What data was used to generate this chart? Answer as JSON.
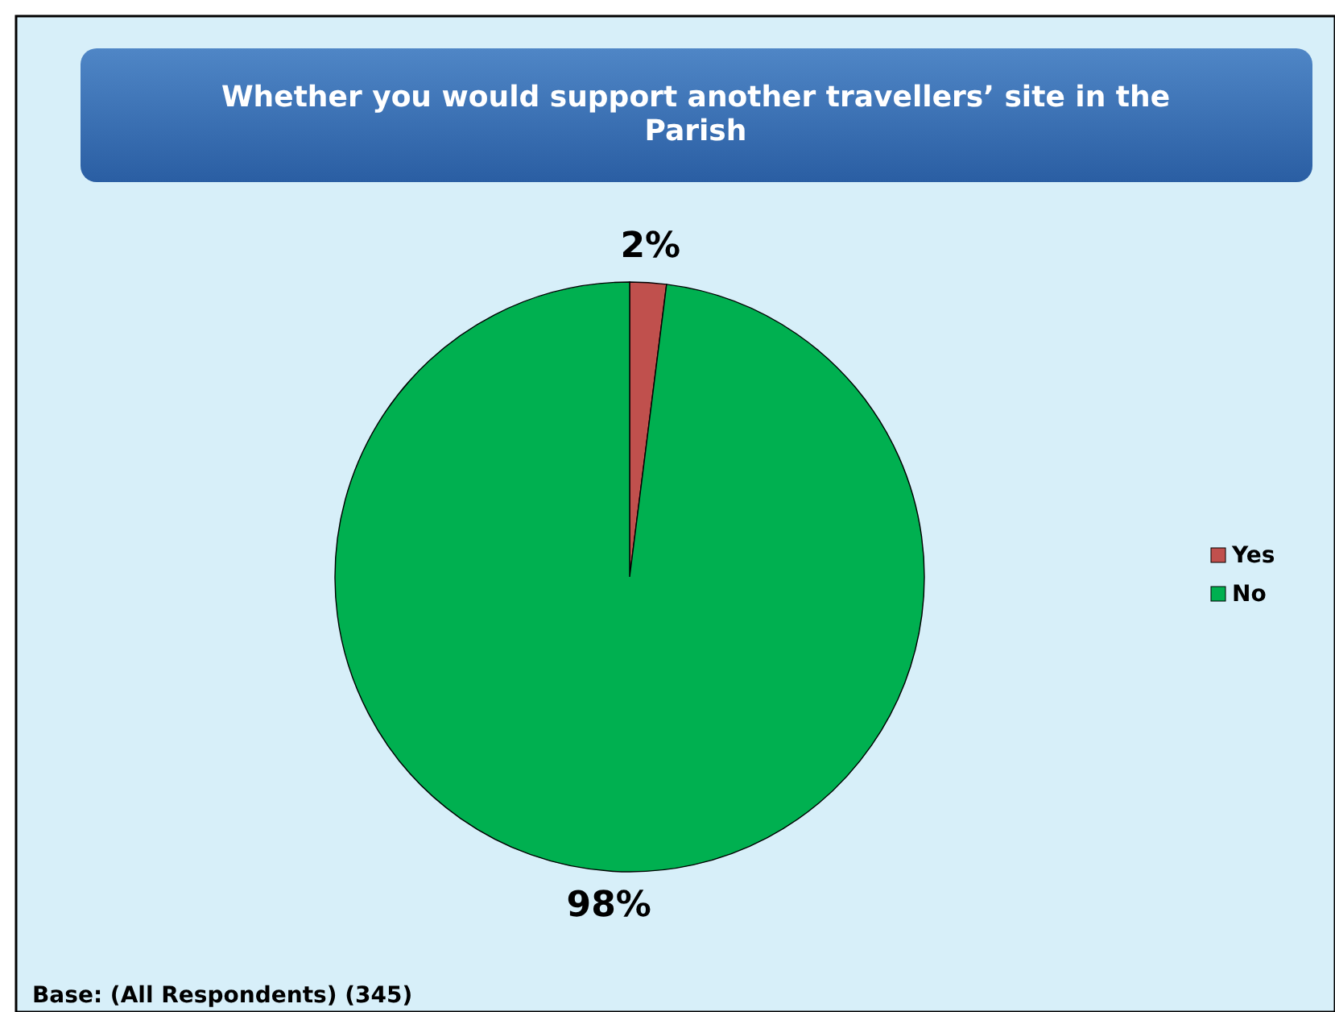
{
  "chart_data": {
    "type": "pie",
    "title": "Whether you would support another travellers’ site in the Parish",
    "categories": [
      "Yes",
      "No"
    ],
    "values": [
      2,
      98
    ],
    "colors": [
      "#c0504d",
      "#00b050"
    ],
    "value_labels": [
      "2%",
      "98%"
    ],
    "legend": "right",
    "annotations": [
      "Base: (All Respondents) (345)"
    ]
  }
}
